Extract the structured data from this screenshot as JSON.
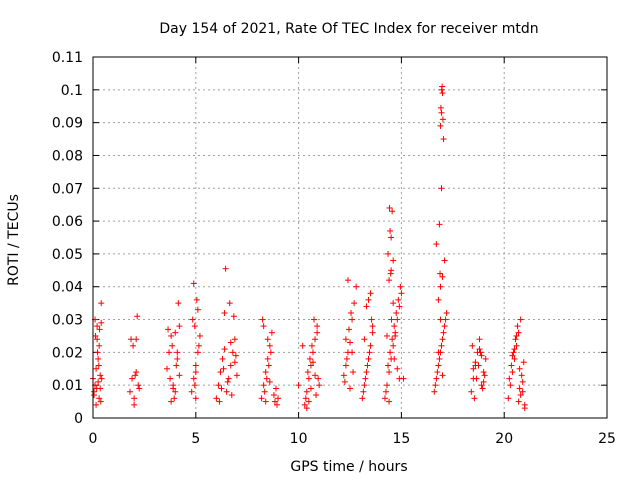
{
  "chart_data": {
    "type": "scatter",
    "title": "Day 154 of 2021, Rate Of TEC Index for receiver mtdn",
    "xlabel": "GPS time / hours",
    "ylabel": "ROTI / TECUs",
    "xlim": [
      0,
      25
    ],
    "ylim": [
      0,
      0.11
    ],
    "xticks": [
      0,
      5,
      10,
      15,
      20,
      25
    ],
    "xtick_labels": [
      "0",
      "5",
      "10",
      "15",
      "20",
      "25"
    ],
    "yticks": [
      0,
      0.01,
      0.02,
      0.03,
      0.04,
      0.05,
      0.06,
      0.07,
      0.08,
      0.09,
      0.1,
      0.11
    ],
    "ytick_labels": [
      "0",
      "0.01",
      "0.02",
      "0.03",
      "0.04",
      "0.05",
      "0.06",
      "0.07",
      "0.08",
      "0.09",
      "0.1",
      "0.11"
    ],
    "grid": true,
    "marker": "+",
    "marker_color": "#ff0000",
    "series": [
      {
        "name": "ROTI",
        "x": [
          0.0,
          0.05,
          0.1,
          0.15,
          0.2,
          0.25,
          0.3,
          0.35,
          0.4,
          0.1,
          0.2,
          0.3,
          0.15,
          0.25,
          0.35,
          0.05,
          0.12,
          0.22,
          0.28,
          0.38,
          0.4,
          0.18,
          0.32,
          0.42,
          1.8,
          1.9,
          2.0,
          2.1,
          2.2,
          1.85,
          1.95,
          2.05,
          2.15,
          2.25,
          2.0,
          2.1,
          3.6,
          3.7,
          3.8,
          3.9,
          4.0,
          4.1,
          4.2,
          3.75,
          3.85,
          3.95,
          4.05,
          4.15,
          3.65,
          3.9,
          4.0,
          4.2,
          3.8,
          4.1,
          4.8,
          4.9,
          5.0,
          5.1,
          5.2,
          4.85,
          4.95,
          5.05,
          5.15,
          4.9,
          5.0,
          5.1,
          5.0,
          4.95,
          6.0,
          6.1,
          6.2,
          6.3,
          6.4,
          6.5,
          6.6,
          6.7,
          6.8,
          6.9,
          7.0,
          6.15,
          6.35,
          6.55,
          6.75,
          6.95,
          6.45,
          6.65,
          6.85,
          6.25,
          6.7,
          6.9,
          6.4,
          8.2,
          8.3,
          8.4,
          8.5,
          8.6,
          8.7,
          8.25,
          8.35,
          8.45,
          8.55,
          8.65,
          8.4,
          8.5,
          8.3,
          8.6,
          8.8,
          8.9,
          9.0,
          8.85,
          8.95,
          10.3,
          10.4,
          10.5,
          10.6,
          10.7,
          10.8,
          10.9,
          11.0,
          10.35,
          10.45,
          10.55,
          10.65,
          10.75,
          10.85,
          10.95,
          10.5,
          10.7,
          10.9,
          10.6,
          10.8,
          10.4,
          10.0,
          10.2,
          12.2,
          12.3,
          12.4,
          12.5,
          12.6,
          12.7,
          12.8,
          12.25,
          12.35,
          12.45,
          12.55,
          12.65,
          12.4,
          12.5,
          12.3,
          12.6,
          13.1,
          13.2,
          13.3,
          13.4,
          13.5,
          13.6,
          13.15,
          13.25,
          13.35,
          13.45,
          13.55,
          13.3,
          13.4,
          13.5,
          13.2,
          13.6,
          14.2,
          14.3,
          14.4,
          14.5,
          14.6,
          14.7,
          14.8,
          14.9,
          15.0,
          15.1,
          14.25,
          14.35,
          14.45,
          14.55,
          14.65,
          14.75,
          14.85,
          14.95,
          14.4,
          14.5,
          14.6,
          14.7,
          14.8,
          14.45,
          14.55,
          14.5,
          14.35,
          14.6,
          14.42,
          14.48,
          14.4,
          14.52,
          14.65,
          14.3,
          14.9,
          16.6,
          16.7,
          16.8,
          16.9,
          17.0,
          17.1,
          17.2,
          16.65,
          16.75,
          16.85,
          16.95,
          17.05,
          17.15,
          16.8,
          16.9,
          17.0,
          17.1,
          16.7,
          16.85,
          16.95,
          17.05,
          16.9,
          16.95,
          17.0,
          16.98,
          16.92,
          17.02,
          16.96,
          16.88,
          17.0,
          16.8,
          16.9,
          18.4,
          18.5,
          18.6,
          18.7,
          18.8,
          18.9,
          19.0,
          19.1,
          18.45,
          18.55,
          18.65,
          18.75,
          18.85,
          18.95,
          19.05,
          18.6,
          18.8,
          19.0,
          18.5,
          18.9,
          20.2,
          20.3,
          20.4,
          20.5,
          20.6,
          20.7,
          20.8,
          20.9,
          21.0,
          20.25,
          20.35,
          20.45,
          20.55,
          20.65,
          20.75,
          20.85,
          20.95,
          20.5,
          20.7,
          20.9,
          20.6,
          20.8,
          20.4,
          20.75,
          21.0
        ],
        "y": [
          0.012,
          0.008,
          0.01,
          0.015,
          0.024,
          0.018,
          0.006,
          0.009,
          0.035,
          0.03,
          0.028,
          0.022,
          0.004,
          0.011,
          0.013,
          0.007,
          0.025,
          0.02,
          0.016,
          0.005,
          0.029,
          0.009,
          0.027,
          0.012,
          0.008,
          0.012,
          0.006,
          0.014,
          0.01,
          0.024,
          0.022,
          0.013,
          0.031,
          0.009,
          0.004,
          0.024,
          0.015,
          0.02,
          0.025,
          0.01,
          0.008,
          0.018,
          0.028,
          0.012,
          0.022,
          0.006,
          0.016,
          0.035,
          0.027,
          0.009,
          0.026,
          0.013,
          0.005,
          0.02,
          0.008,
          0.012,
          0.016,
          0.02,
          0.025,
          0.03,
          0.01,
          0.036,
          0.022,
          0.041,
          0.014,
          0.033,
          0.006,
          0.028,
          0.006,
          0.01,
          0.014,
          0.018,
          0.021,
          0.008,
          0.012,
          0.016,
          0.02,
          0.024,
          0.013,
          0.005,
          0.015,
          0.011,
          0.007,
          0.019,
          0.0455,
          0.035,
          0.031,
          0.009,
          0.023,
          0.017,
          0.032,
          0.006,
          0.01,
          0.014,
          0.018,
          0.022,
          0.026,
          0.03,
          0.008,
          0.012,
          0.016,
          0.02,
          0.005,
          0.024,
          0.028,
          0.011,
          0.007,
          0.009,
          0.006,
          0.005,
          0.004,
          0.004,
          0.008,
          0.012,
          0.016,
          0.02,
          0.024,
          0.028,
          0.01,
          0.006,
          0.014,
          0.018,
          0.022,
          0.03,
          0.007,
          0.012,
          0.005,
          0.017,
          0.026,
          0.009,
          0.013,
          0.003,
          0.01,
          0.022,
          0.013,
          0.016,
          0.02,
          0.023,
          0.03,
          0.035,
          0.04,
          0.011,
          0.018,
          0.027,
          0.032,
          0.014,
          0.042,
          0.009,
          0.024,
          0.02,
          0.006,
          0.01,
          0.014,
          0.018,
          0.022,
          0.026,
          0.008,
          0.012,
          0.016,
          0.02,
          0.03,
          0.034,
          0.036,
          0.038,
          0.024,
          0.028,
          0.006,
          0.01,
          0.014,
          0.018,
          0.022,
          0.026,
          0.03,
          0.034,
          0.038,
          0.012,
          0.008,
          0.016,
          0.02,
          0.024,
          0.028,
          0.032,
          0.036,
          0.04,
          0.042,
          0.045,
          0.048,
          0.025,
          0.015,
          0.057,
          0.063,
          0.055,
          0.05,
          0.035,
          0.064,
          0.044,
          0.005,
          0.03,
          0.018,
          0.025,
          0.012,
          0.008,
          0.012,
          0.016,
          0.02,
          0.024,
          0.028,
          0.032,
          0.01,
          0.014,
          0.018,
          0.022,
          0.026,
          0.03,
          0.036,
          0.04,
          0.043,
          0.048,
          0.053,
          0.059,
          0.07,
          0.085,
          0.089,
          0.093,
          0.099,
          0.101,
          0.0945,
          0.091,
          0.1,
          0.044,
          0.013,
          0.02,
          0.03,
          0.008,
          0.012,
          0.016,
          0.02,
          0.024,
          0.01,
          0.014,
          0.018,
          0.022,
          0.006,
          0.012,
          0.016,
          0.02,
          0.009,
          0.013,
          0.017,
          0.021,
          0.011,
          0.015,
          0.019,
          0.006,
          0.01,
          0.014,
          0.018,
          0.022,
          0.026,
          0.03,
          0.008,
          0.004,
          0.012,
          0.016,
          0.02,
          0.024,
          0.028,
          0.009,
          0.013,
          0.017,
          0.021,
          0.005,
          0.011,
          0.025,
          0.007,
          0.019,
          0.015,
          0.003
        ]
      }
    ]
  }
}
